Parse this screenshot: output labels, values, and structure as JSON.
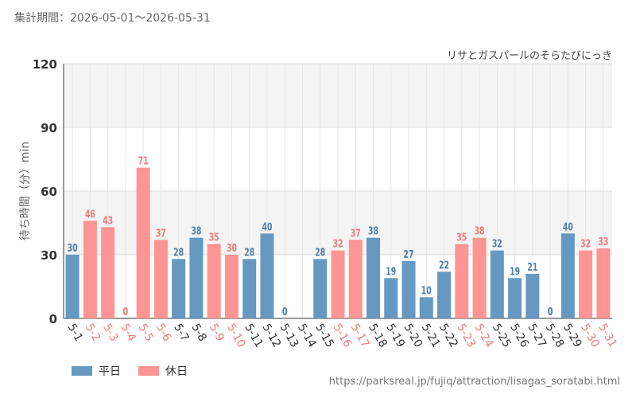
{
  "period_text": "集計期間：2026-05-01～2026-05-31",
  "attribution": "リサとガスパールのそらたびにっき",
  "source_url": "https://parksreal.jp/fujiq/attraction/lisagas_soratabi.html",
  "colors": {
    "weekday": "#6699c2",
    "holiday": "#ff9494",
    "holiday_text": "#f07a7a",
    "weekday_text": "#4f7fa8"
  },
  "legend": [
    {
      "key": "weekday",
      "label": "平日"
    },
    {
      "key": "holiday",
      "label": "休日"
    }
  ],
  "chart_data": {
    "type": "bar",
    "ylabel": "待ち時間（分）min",
    "ylim": [
      0,
      120
    ],
    "yticks": [
      0,
      30,
      60,
      90,
      120
    ],
    "grid": true,
    "categories": [
      "5-1",
      "5-2",
      "5-3",
      "5-4",
      "5-5",
      "5-6",
      "5-7",
      "5-8",
      "5-9",
      "5-10",
      "5-11",
      "5-12",
      "5-13",
      "5-14",
      "5-15",
      "5-16",
      "5-17",
      "5-18",
      "5-19",
      "5-20",
      "5-21",
      "5-22",
      "5-23",
      "5-24",
      "5-25",
      "5-26",
      "5-27",
      "5-28",
      "5-29",
      "5-30",
      "5-31"
    ],
    "values": [
      30,
      46,
      43,
      0,
      71,
      37,
      28,
      38,
      35,
      30,
      28,
      40,
      0,
      null,
      28,
      32,
      37,
      38,
      19,
      27,
      10,
      22,
      35,
      38,
      32,
      19,
      21,
      0,
      40,
      32,
      33
    ],
    "day_type": [
      "weekday",
      "holiday",
      "holiday",
      "holiday",
      "holiday",
      "holiday",
      "weekday",
      "weekday",
      "holiday",
      "holiday",
      "weekday",
      "weekday",
      "weekday",
      "weekday",
      "weekday",
      "holiday",
      "holiday",
      "weekday",
      "weekday",
      "weekday",
      "weekday",
      "weekday",
      "holiday",
      "holiday",
      "weekday",
      "weekday",
      "weekday",
      "weekday",
      "weekday",
      "holiday",
      "holiday"
    ]
  }
}
